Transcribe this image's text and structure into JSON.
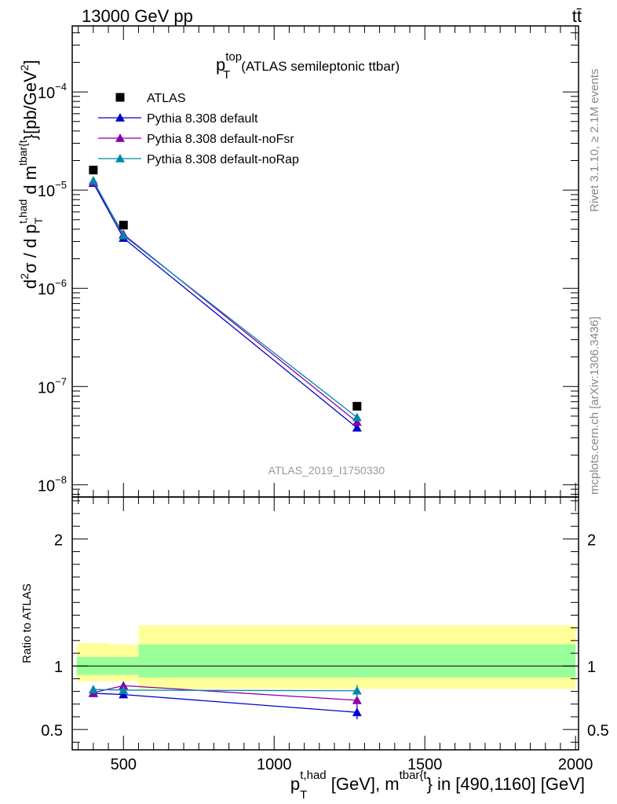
{
  "header": {
    "energy": "13000 GeV pp",
    "process": "tt̄"
  },
  "plot_title": {
    "main": "p",
    "sup": "top",
    "sub": "T",
    "rest": "(ATLAS semileptonic ttbar)"
  },
  "side_labels": {
    "rivet": "Rivet 3.1.10, ≥ 2.1M events",
    "mcplots": "mcplots.cern.ch [arXiv:1306.3436]"
  },
  "watermark": "ATLAS_2019_I1750330",
  "ylabel_main": {
    "d2": "d",
    "sup2": "2",
    "sigma": "σ / d p",
    "sub_T": "T",
    "sup_thad": "t,had",
    "d_m": " d m",
    "sup_tbar": "tbar{t",
    "units": "}[pb/GeV",
    "units_sup": "2",
    "units_close": "]"
  },
  "ylabel_ratio": "Ratio to ATLAS",
  "xlabel": {
    "p": "p",
    "sub": "T",
    "sup_thad": "t,had",
    "part1": " [GeV], m",
    "sup_tbar": "tbar{t",
    "part2": "} in [490,1160] [GeV]"
  },
  "chart_data": {
    "type": "scatter",
    "x_axis": {
      "range": [
        330,
        2010
      ],
      "ticks": [
        500,
        1000,
        1500,
        2000
      ],
      "tick_labels": [
        "500",
        "1000",
        "1500",
        "2000"
      ]
    },
    "main_panel": {
      "y_scale": "log",
      "y_range": [
        7.5e-09,
        0.00047
      ],
      "y_tick_labels": [
        {
          "value": 0.0001,
          "base": "10",
          "exp": "−4"
        },
        {
          "value": 1e-05,
          "base": "10",
          "exp": "−5"
        },
        {
          "value": 1e-06,
          "base": "10",
          "exp": "−6"
        },
        {
          "value": 1e-07,
          "base": "10",
          "exp": "−7"
        },
        {
          "value": 1e-08,
          "base": "10",
          "exp": "−8"
        }
      ],
      "data": {
        "name": "ATLAS",
        "color": "#000000",
        "x": [
          400,
          500,
          1275
        ],
        "y": [
          1.6e-05,
          4.4e-06,
          6.3e-08
        ]
      },
      "series": [
        {
          "name": "Pythia 8.308 default",
          "color": "#0000cc",
          "x": [
            400,
            500,
            1275
          ],
          "y": [
            1.18e-05,
            3.25e-06,
            3.8e-08
          ]
        },
        {
          "name": "Pythia 8.308 default-noFsr",
          "color": "#8800aa",
          "x": [
            400,
            500,
            1275
          ],
          "y": [
            1.2e-05,
            3.55e-06,
            4.35e-08
          ]
        },
        {
          "name": "Pythia 8.308 default-noRap",
          "color": "#0088aa",
          "x": [
            400,
            500,
            1275
          ],
          "y": [
            1.25e-05,
            3.45e-06,
            4.85e-08
          ]
        }
      ]
    },
    "ratio_panel": {
      "y_scale": "linear",
      "y_range": [
        0.34,
        2.33
      ],
      "ticks": [
        0.5,
        1,
        2
      ],
      "tick_labels": [
        "0.5",
        "1",
        "2"
      ],
      "reference": 1,
      "bands": {
        "inner_color": "#99ff99",
        "outer_color": "#ffff99",
        "bins": [
          {
            "x0": 345,
            "x1": 455,
            "inner": [
              0.93,
              1.07
            ],
            "outer": [
              0.88,
              1.18
            ]
          },
          {
            "x0": 455,
            "x1": 550,
            "inner": [
              0.93,
              1.07
            ],
            "outer": [
              0.88,
              1.17
            ]
          },
          {
            "x0": 550,
            "x1": 2000,
            "inner": [
              0.91,
              1.17
            ],
            "outer": [
              0.82,
              1.32
            ]
          }
        ]
      },
      "series": [
        {
          "name": "Pythia 8.308 default",
          "color": "#0000cc",
          "x": [
            400,
            500,
            1275
          ],
          "y": [
            0.785,
            0.775,
            0.635
          ],
          "err": [
            0.01,
            0.015,
            0.055
          ]
        },
        {
          "name": "Pythia 8.308 default-noFsr",
          "color": "#8800aa",
          "x": [
            400,
            500,
            1275
          ],
          "y": [
            0.79,
            0.845,
            0.73
          ],
          "err": [
            0.01,
            0.02,
            0.05
          ]
        },
        {
          "name": "Pythia 8.308 default-noRap",
          "color": "#0088aa",
          "x": [
            400,
            500,
            1275
          ],
          "y": [
            0.815,
            0.81,
            0.805
          ],
          "err": [
            0.01,
            0.015,
            0.045
          ]
        }
      ]
    },
    "legend_position": "top-left"
  }
}
